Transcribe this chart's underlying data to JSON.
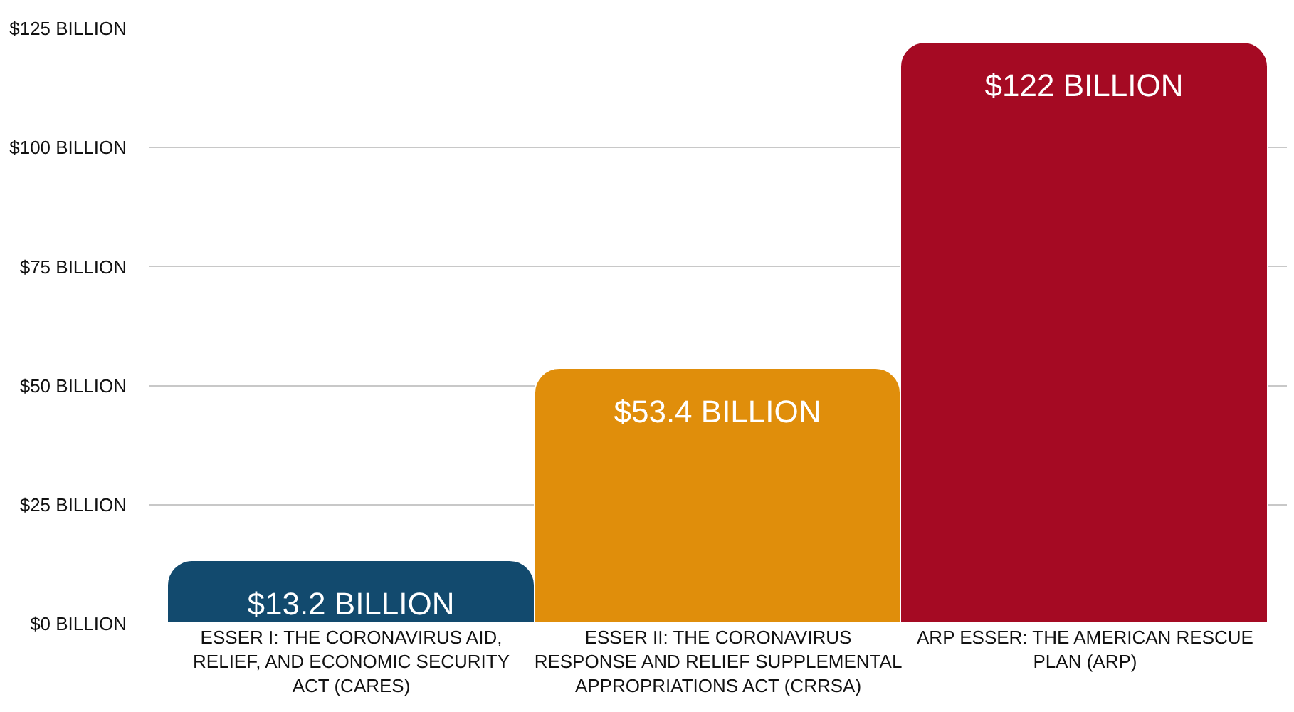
{
  "chart_data": {
    "type": "bar",
    "categories": [
      "ESSER I: THE CORONAVIRUS AID, RELIEF, AND ECONOMIC SECURITY ACT (CARES)",
      "ESSER II: THE CORONAVIRUS RESPONSE AND RELIEF SUPPLEMENTAL APPROPRIATIONS ACT (CRRSA)",
      "ARP ESSER: THE AMERICAN RESCUE PLAN (ARP)"
    ],
    "values": [
      13.2,
      53.4,
      122
    ],
    "colors": [
      "#124a6e",
      "#e08e0b",
      "#a50a23"
    ],
    "value_labels": [
      "$13.2 BILLION",
      "$53.4 BILLION",
      "$122 BILLION"
    ],
    "ylim": [
      0,
      125
    ],
    "yticks": [
      {
        "value": 0,
        "label": "$0 BILLION"
      },
      {
        "value": 25,
        "label": "$25 BILLION"
      },
      {
        "value": 50,
        "label": "$50 BILLION"
      },
      {
        "value": 75,
        "label": "$75 BILLION"
      },
      {
        "value": 100,
        "label": "$100 BILLION"
      },
      {
        "value": 125,
        "label": "$125 BILLION"
      }
    ],
    "grid": "y"
  }
}
